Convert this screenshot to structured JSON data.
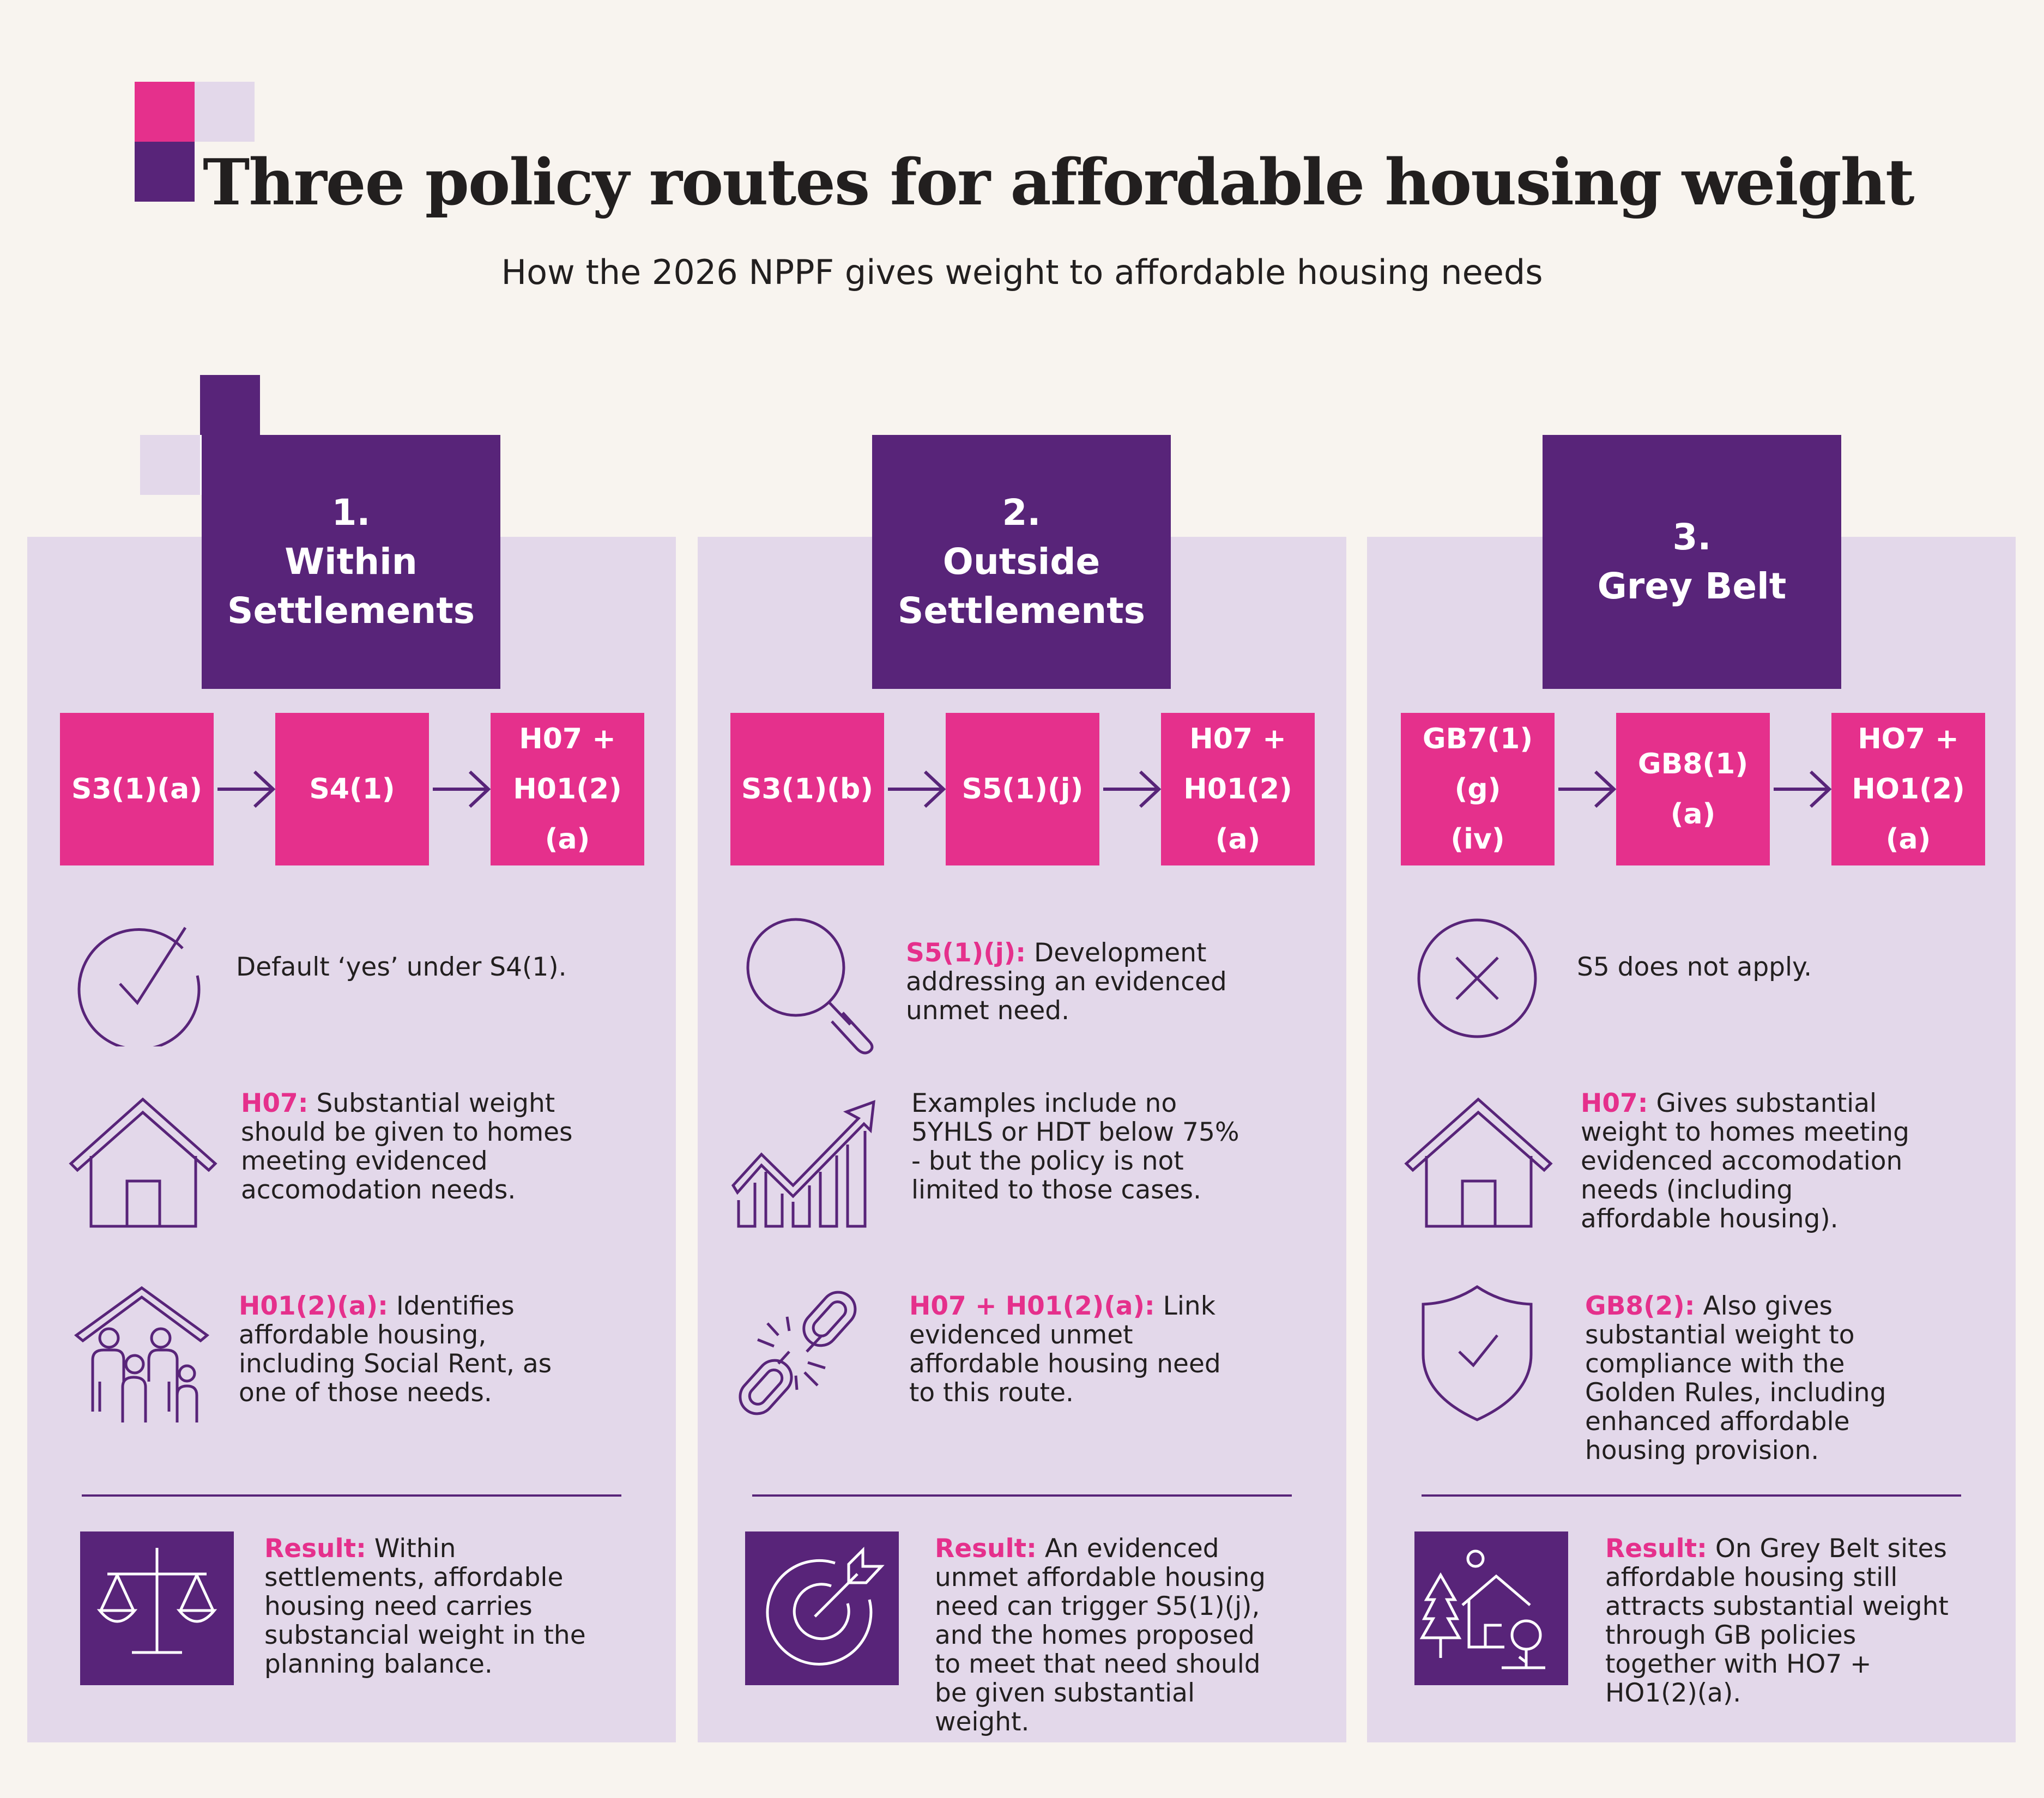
{
  "header": {
    "title": "Three policy routes for affordable housing weight",
    "subtitle": "How the 2026 NPPF gives weight to affordable housing needs"
  },
  "colors": {
    "purple": "#582479",
    "pink": "#e5308c",
    "lilac": "#e3d8ea",
    "background": "#f8f4ef"
  },
  "routes": [
    {
      "number": "1.",
      "name": [
        "Within",
        "Settlements"
      ],
      "codes": [
        [
          "S3(1)(a)"
        ],
        [
          "S4(1)"
        ],
        [
          "H07 +",
          "H01(2)(a)"
        ]
      ],
      "items": [
        {
          "icon": "checkmark-circle-icon",
          "label": "",
          "text": "Default ‘yes’ under S4(1)."
        },
        {
          "icon": "house-icon",
          "label": "H07:",
          "text": " Substantial weight should be given to homes meeting evidenced accomodation needs."
        },
        {
          "icon": "family-house-icon",
          "label": "H01(2)(a):",
          "text": " Identifies affordable housing, including Social Rent, as one of those needs."
        }
      ],
      "result": {
        "icon": "scales-icon",
        "label": "Result:",
        "text": " Within settlements, affordable housing need carries substancial weight in the planning balance."
      }
    },
    {
      "number": "2.",
      "name": [
        "Outside",
        "Settlements"
      ],
      "codes": [
        [
          "S3(1)(b)"
        ],
        [
          "S5(1)(j)"
        ],
        [
          "H07 +",
          "H01(2)(a)"
        ]
      ],
      "items": [
        {
          "icon": "magnifier-icon",
          "label": "S5(1)(j):",
          "text": " Development addressing an evidenced unmet need."
        },
        {
          "icon": "rising-chart-icon",
          "label": "",
          "text": "Examples include no 5YHLS or HDT below 75% - but the policy is not limited to those cases."
        },
        {
          "icon": "broken-chain-icon",
          "label": "H07 + H01(2)(a):",
          "text": " Link evidenced unmet affordable housing need to this route."
        }
      ],
      "result": {
        "icon": "target-arrow-icon",
        "label": "Result:",
        "text": " An evidenced unmet affordable housing need can trigger S5(1)(j), and the homes proposed to meet that need should be given substantial weight."
      }
    },
    {
      "number": "3.",
      "name": [
        "Grey Belt"
      ],
      "codes": [
        [
          "GB7(1)(g)",
          "(iv)"
        ],
        [
          "GB8(1)(a)"
        ],
        [
          "HO7 +",
          "HO1(2)(a)"
        ]
      ],
      "items": [
        {
          "icon": "cross-circle-icon",
          "label": "",
          "text": "S5 does not apply."
        },
        {
          "icon": "house-icon",
          "label": "H07:",
          "text": " Gives substantial weight to homes meeting evidenced accomodation needs (including affordable housing)."
        },
        {
          "icon": "shield-check-icon",
          "label": "GB8(2):",
          "text": " Also gives substantial weight to compliance with the Golden Rules, including enhanced affordable housing provision."
        }
      ],
      "result": {
        "icon": "green-belt-home-icon",
        "label": "Result:",
        "text": " On Grey Belt sites affordable housing still attracts substantial weight through GB policies together with HO7 + HO1(2)(a)."
      }
    }
  ]
}
